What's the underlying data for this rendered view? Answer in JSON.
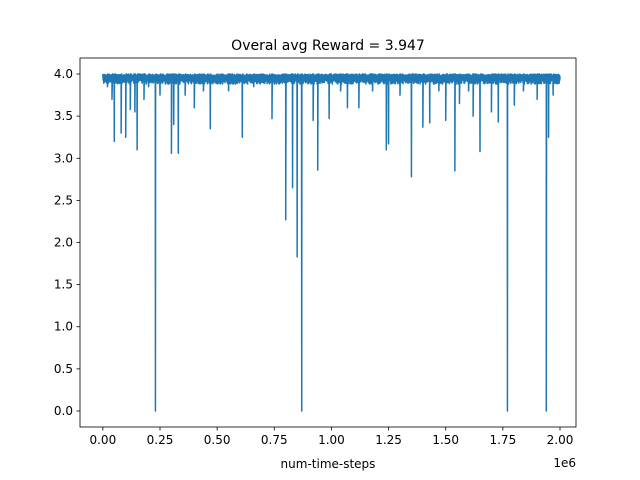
{
  "chart_data": {
    "type": "line",
    "title": "Overal avg Reward = 3.947",
    "xlabel": "num-time-steps",
    "ylabel": "",
    "x_multiplier_label": "1e6",
    "xlim": [
      -0.1,
      2.07
    ],
    "ylim": [
      -0.19,
      4.19
    ],
    "x_ticks": [
      0.0,
      0.25,
      0.5,
      0.75,
      1.0,
      1.25,
      1.5,
      1.75,
      2.0
    ],
    "x_tick_labels": [
      "0.00",
      "0.25",
      "0.50",
      "0.75",
      "1.00",
      "1.25",
      "1.50",
      "1.75",
      "2.00"
    ],
    "y_ticks": [
      0.0,
      0.5,
      1.0,
      1.5,
      2.0,
      2.5,
      3.0,
      3.5,
      4.0
    ],
    "y_tick_labels": [
      "0.0",
      "0.5",
      "1.0",
      "1.5",
      "2.0",
      "2.5",
      "3.0",
      "3.5",
      "4.0"
    ],
    "grid": false,
    "line_color": "#1f77b4",
    "series": [
      {
        "x_range": [
          0.0,
          2.0
        ],
        "baseline_band": [
          3.88,
          4.0
        ],
        "dips": [
          {
            "x": 0.02,
            "y": 3.85
          },
          {
            "x": 0.04,
            "y": 3.7
          },
          {
            "x": 0.05,
            "y": 3.2
          },
          {
            "x": 0.08,
            "y": 3.3
          },
          {
            "x": 0.1,
            "y": 3.25
          },
          {
            "x": 0.12,
            "y": 3.58
          },
          {
            "x": 0.14,
            "y": 3.55
          },
          {
            "x": 0.15,
            "y": 3.1
          },
          {
            "x": 0.18,
            "y": 3.7
          },
          {
            "x": 0.2,
            "y": 3.85
          },
          {
            "x": 0.23,
            "y": 0.0
          },
          {
            "x": 0.25,
            "y": 3.75
          },
          {
            "x": 0.3,
            "y": 3.06
          },
          {
            "x": 0.31,
            "y": 3.4
          },
          {
            "x": 0.33,
            "y": 3.06
          },
          {
            "x": 0.36,
            "y": 3.75
          },
          {
            "x": 0.4,
            "y": 3.6
          },
          {
            "x": 0.44,
            "y": 3.8
          },
          {
            "x": 0.47,
            "y": 3.35
          },
          {
            "x": 0.55,
            "y": 3.8
          },
          {
            "x": 0.61,
            "y": 3.25
          },
          {
            "x": 0.66,
            "y": 3.85
          },
          {
            "x": 0.74,
            "y": 3.47
          },
          {
            "x": 0.8,
            "y": 2.27
          },
          {
            "x": 0.83,
            "y": 2.65
          },
          {
            "x": 0.85,
            "y": 1.83
          },
          {
            "x": 0.87,
            "y": 0.0
          },
          {
            "x": 0.92,
            "y": 3.45
          },
          {
            "x": 0.94,
            "y": 2.86
          },
          {
            "x": 0.99,
            "y": 3.47
          },
          {
            "x": 1.04,
            "y": 3.8
          },
          {
            "x": 1.07,
            "y": 3.6
          },
          {
            "x": 1.12,
            "y": 3.6
          },
          {
            "x": 1.18,
            "y": 3.8
          },
          {
            "x": 1.24,
            "y": 3.1
          },
          {
            "x": 1.25,
            "y": 3.17
          },
          {
            "x": 1.3,
            "y": 3.75
          },
          {
            "x": 1.35,
            "y": 2.78
          },
          {
            "x": 1.4,
            "y": 3.37
          },
          {
            "x": 1.43,
            "y": 3.42
          },
          {
            "x": 1.47,
            "y": 3.8
          },
          {
            "x": 1.5,
            "y": 3.45
          },
          {
            "x": 1.54,
            "y": 2.85
          },
          {
            "x": 1.56,
            "y": 3.65
          },
          {
            "x": 1.6,
            "y": 3.8
          },
          {
            "x": 1.62,
            "y": 3.5
          },
          {
            "x": 1.65,
            "y": 3.08
          },
          {
            "x": 1.7,
            "y": 3.55
          },
          {
            "x": 1.73,
            "y": 3.43
          },
          {
            "x": 1.77,
            "y": 0.0
          },
          {
            "x": 1.8,
            "y": 3.63
          },
          {
            "x": 1.84,
            "y": 3.8
          },
          {
            "x": 1.9,
            "y": 3.7
          },
          {
            "x": 1.94,
            "y": 0.0
          },
          {
            "x": 1.95,
            "y": 3.25
          },
          {
            "x": 1.97,
            "y": 3.75
          }
        ]
      }
    ]
  }
}
